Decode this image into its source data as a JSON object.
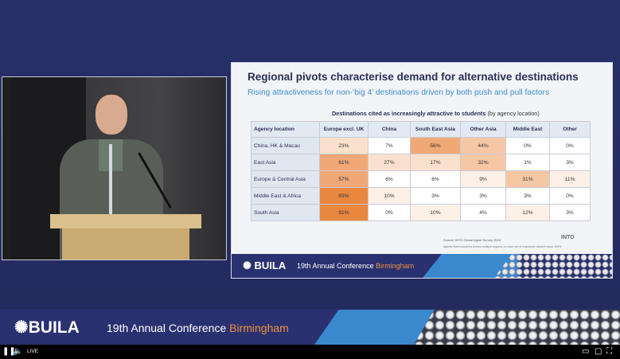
{
  "slide": {
    "title": "Regional pivots characterise demand for alternative destinations",
    "subtitle": "Rising attractiveness for non-‘big 4’ destinations driven by both push and pull factors",
    "table_title_bold": "Destinations cited as increasingly attractive to students",
    "table_title_rest": " (by agency location)",
    "columns": [
      "Agency location",
      "Europe excl. UK",
      "China",
      "South East Asia",
      "Other Asia",
      "Middle East",
      "Other"
    ],
    "rows": [
      {
        "label": "China, HK & Macau",
        "values": [
          "23%",
          "7%",
          "56%",
          "44%",
          "0%",
          "0%"
        ]
      },
      {
        "label": "East Asia",
        "values": [
          "61%",
          "27%",
          "17%",
          "32%",
          "1%",
          "3%"
        ]
      },
      {
        "label": "Europe & Central Asia",
        "values": [
          "57%",
          "6%",
          "6%",
          "9%",
          "31%",
          "11%"
        ]
      },
      {
        "label": "Middle East & Africa",
        "values": [
          "93%",
          "10%",
          "3%",
          "3%",
          "3%",
          "0%"
        ]
      },
      {
        "label": "South Asia",
        "values": [
          "91%",
          "0%",
          "10%",
          "4%",
          "12%",
          "3%"
        ]
      }
    ],
    "source": "Source: INTO Global Agent Survey 2024",
    "note": "Agents listed countries across multiple regions, so each set of responses doesn't equal 100%",
    "logo": "INTO",
    "banner_logo": "BUILA",
    "banner_conf": "19th Annual Conference ",
    "banner_city": "Birmingham"
  },
  "banner": {
    "logo": "BUILA",
    "conf": "19th Annual Conference ",
    "city": "Birmingham"
  },
  "player": {
    "live_label": "LIVE"
  },
  "colors": {
    "heat_high": "#e9873f",
    "heat_mid": "#f6c7a5",
    "heat_low": "#fbe5d6",
    "accent": "#3b8fd1",
    "orange": "#f0903a"
  }
}
